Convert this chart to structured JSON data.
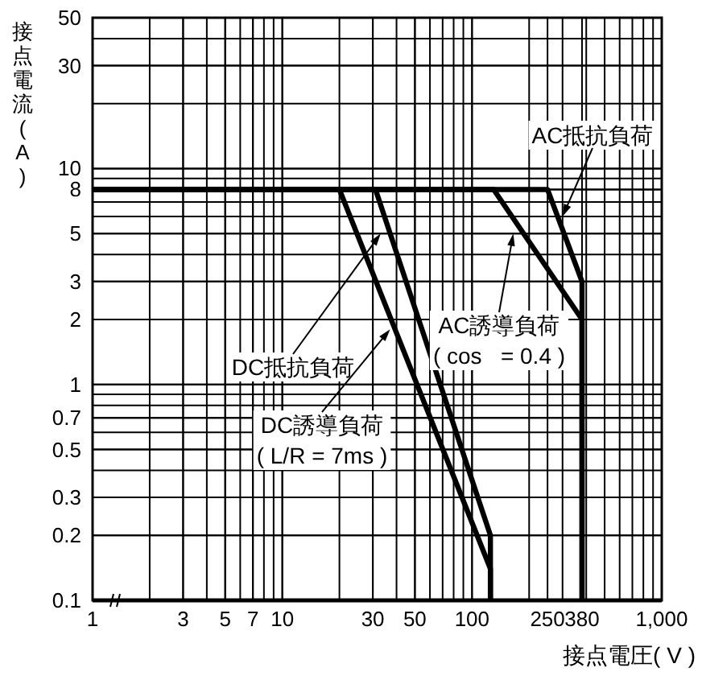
{
  "chart_data": {
    "type": "line",
    "xlabel": "接点電圧( V )",
    "ylabel": "接点電流(A)",
    "log": "xy",
    "grid": true,
    "line_style": "solid",
    "xlim": [
      1,
      1000
    ],
    "ylim": [
      0.1,
      50
    ],
    "xticks": [
      1,
      3,
      5,
      7,
      10,
      30,
      50,
      100,
      250,
      380,
      {
        "value": 1000,
        "label": "1,000"
      }
    ],
    "yticks": [
      0.1,
      0.2,
      0.3,
      0.5,
      0.7,
      1,
      2,
      3,
      5,
      8,
      10,
      30,
      50
    ],
    "series": [
      {
        "color": "#000000",
        "x": [
          1,
          250,
          380,
          380
        ],
        "values": [
          8,
          8,
          3,
          0.1
        ]
      },
      {
        "color": "#000000",
        "x": [
          1,
          130,
          380,
          380
        ],
        "values": [
          8,
          8,
          2,
          0.1
        ]
      },
      {
        "color": "#000000",
        "x": [
          1,
          31,
          125,
          125
        ],
        "values": [
          8,
          8,
          0.2,
          0.1
        ]
      },
      {
        "color": "#000000",
        "x": [
          1,
          20,
          125,
          125
        ],
        "values": [
          8,
          8,
          0.14,
          0.1
        ]
      }
    ],
    "annotations": [
      {
        "text": "AC抵抗負荷",
        "x": 300,
        "y": 6
      },
      {
        "text": "AC誘導負荷\n( cos   = 0.4 )",
        "x": 165,
        "y": 5
      },
      {
        "text": "DC抵抗負荷",
        "x": 33,
        "y": 5
      },
      {
        "text": "DC誘導負荷\n( L/R = 7ms )",
        "x": 37,
        "y": 1.8
      }
    ]
  }
}
